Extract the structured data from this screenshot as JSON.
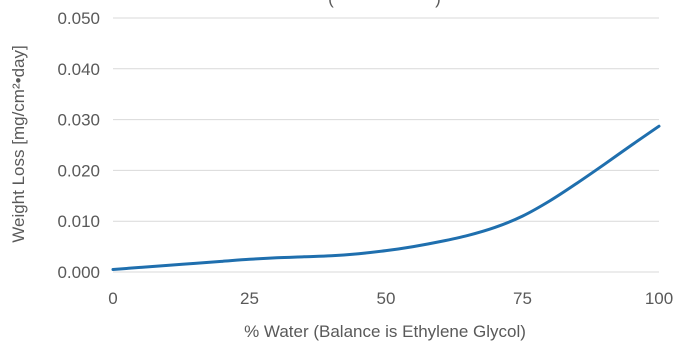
{
  "chart_data": {
    "type": "line",
    "title_fragment": "(",
    "title_fragment_2": ")",
    "xlabel": "% Water (Balance is Ethylene Glycol)",
    "ylabel": "Weight Loss [mg/cm²•day]",
    "xlim": [
      0,
      100
    ],
    "ylim": [
      0,
      0.05
    ],
    "x_ticks": [
      "0",
      "25",
      "50",
      "75",
      "100"
    ],
    "y_ticks": [
      "0.000",
      "0.010",
      "0.020",
      "0.030",
      "0.040",
      "0.050"
    ],
    "grid": true,
    "series": [
      {
        "color": "#1f6fae",
        "x": [
          0,
          5,
          10,
          15,
          20,
          25,
          30,
          35,
          40,
          45,
          50,
          55,
          60,
          65,
          70,
          75,
          80,
          85,
          90,
          95,
          100
        ],
        "y": [
          0.0005,
          0.0009,
          0.0013,
          0.0017,
          0.0021,
          0.0025,
          0.0028,
          0.003,
          0.0032,
          0.0036,
          0.0042,
          0.005,
          0.006,
          0.0072,
          0.0088,
          0.011,
          0.014,
          0.0175,
          0.0212,
          0.025,
          0.0287
        ]
      }
    ]
  }
}
